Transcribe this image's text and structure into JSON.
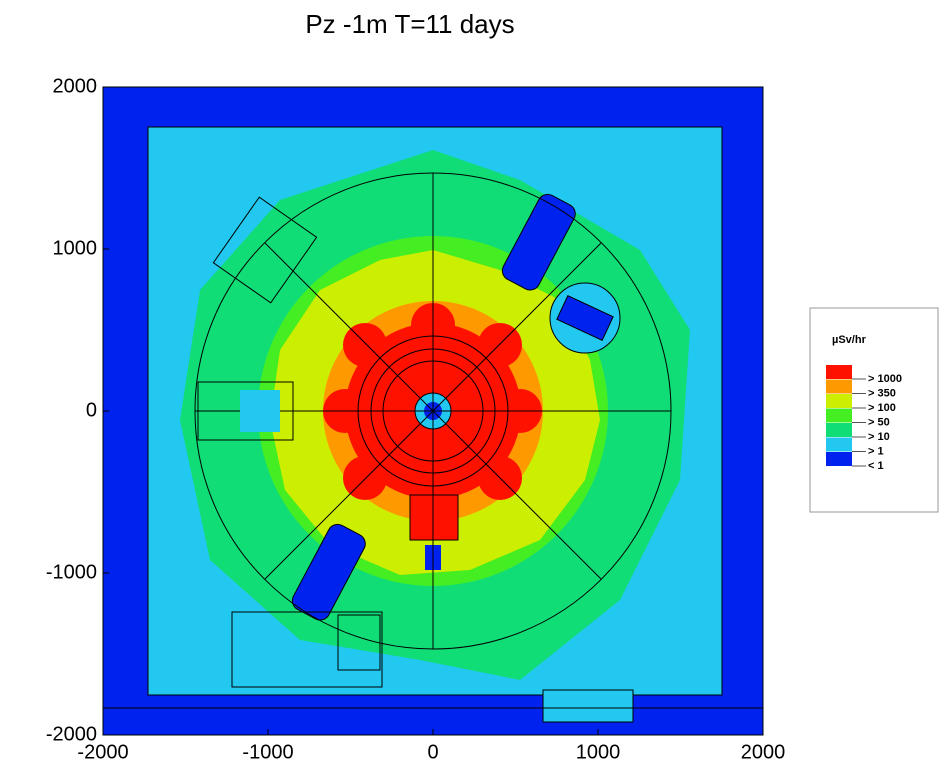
{
  "chart_data": {
    "type": "heatmap",
    "title": "Pz -1m T=11 days",
    "xlim": [
      -2000,
      2000
    ],
    "ylim": [
      -2000,
      2000
    ],
    "xticks": [
      -2000,
      -1000,
      0,
      1000,
      2000
    ],
    "yticks": [
      -2000,
      -1000,
      0,
      1000,
      2000
    ],
    "legend_title": "µSv/hr",
    "levels": [
      {
        "label": "> 1000",
        "color": "#ff1100"
      },
      {
        "label": "> 350",
        "color": "#ff9900"
      },
      {
        "label": "> 100",
        "color": "#ccee00"
      },
      {
        "label": "> 50",
        "color": "#44ee22"
      },
      {
        "label": "> 10",
        "color": "#11dd77"
      },
      {
        "label": "> 1",
        "color": "#22c8f0"
      },
      {
        "label": "< 1",
        "color": "#0022ee"
      }
    ]
  }
}
